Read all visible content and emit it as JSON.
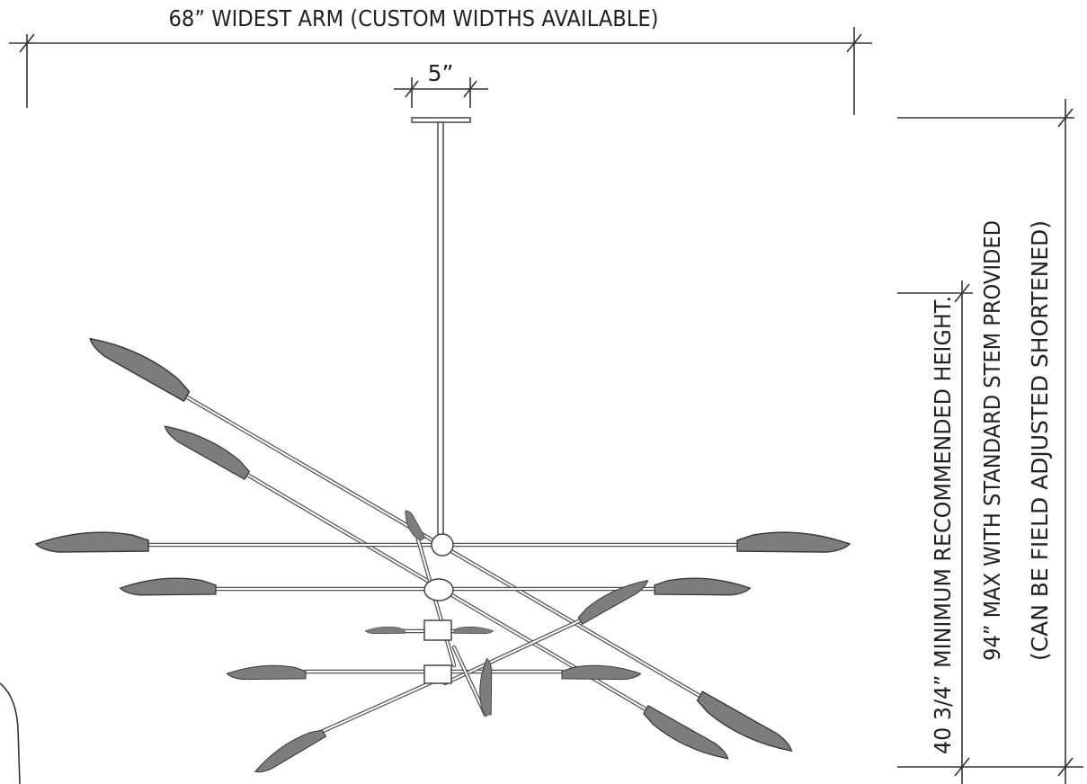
{
  "dimensions": {
    "width_label": "68” WIDEST ARM (CUSTOM WIDTHS AVAILABLE)",
    "canopy_label": "5”",
    "max_height_label": [
      "94” MAX WITH STANDARD STEM PROVIDED",
      "(CAN BE FIELD ADJUSTED SHORTENED)"
    ],
    "min_height_label": "40 3/4” MINIMUM RECOMMENDED HEIGHT."
  }
}
